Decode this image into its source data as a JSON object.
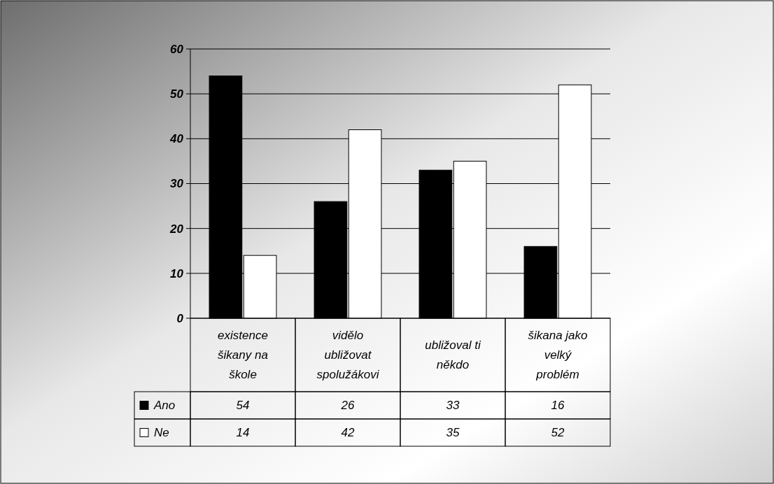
{
  "chart_data": {
    "type": "bar",
    "categories": [
      "existence šikany na škole",
      "vidělo ubližovat spolužákovi",
      "ubližoval ti někdo",
      "šikana jako velký problém"
    ],
    "series": [
      {
        "name": "Ano",
        "color": "#000000",
        "values": [
          54,
          26,
          33,
          16
        ]
      },
      {
        "name": "Ne",
        "color": "#ffffff",
        "values": [
          14,
          42,
          35,
          52
        ]
      }
    ],
    "ylim": [
      0,
      60
    ],
    "yticks": [
      0,
      10,
      20,
      30,
      40,
      50,
      60
    ],
    "grid": "y",
    "legend": "bottom left",
    "data_labels": true
  }
}
